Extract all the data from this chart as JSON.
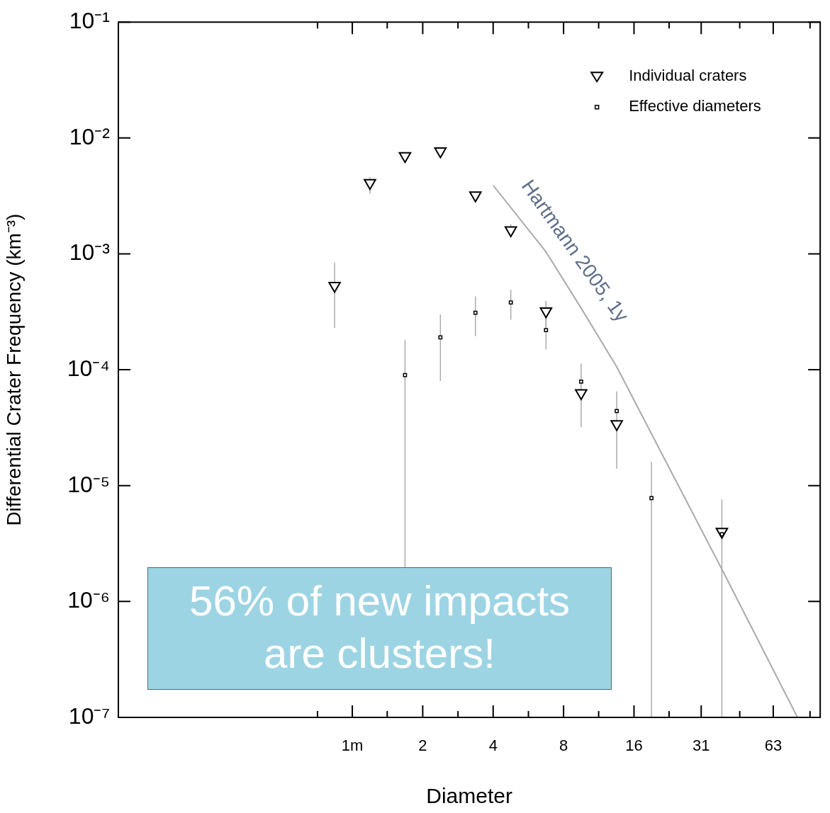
{
  "chart_data": {
    "type": "scatter",
    "xlabel": "Diameter",
    "ylabel": "Differential Crater Frequency (km⁻³)",
    "log": "xy",
    "xlim": [
      0.1,
      100
    ],
    "xticks": [
      {
        "value": 0.71,
        "label": null
      },
      {
        "value": 1,
        "label": "1m"
      },
      {
        "value": 1.41,
        "label": null
      },
      2,
      {
        "value": 2.83,
        "label": null
      },
      4,
      {
        "value": 5.66,
        "label": null
      },
      8,
      {
        "value": 11.3,
        "label": null
      },
      16,
      {
        "value": 22.6,
        "label": null
      },
      31,
      {
        "value": 45.3,
        "label": null
      },
      63,
      {
        "value": 90.5,
        "label": null
      }
    ],
    "ylim": [
      1e-07,
      0.1
    ],
    "yticks": [
      {
        "value": 1e-07,
        "label": "10⁻⁷"
      },
      {
        "value": 1e-06,
        "label": "10⁻⁶"
      },
      {
        "value": 1e-05,
        "label": "10⁻⁵"
      },
      {
        "value": 0.0001,
        "label": "10⁻⁴"
      },
      {
        "value": 0.001,
        "label": "10⁻³"
      },
      {
        "value": 0.01,
        "label": "10⁻²"
      },
      {
        "value": 0.1,
        "label": "10⁻¹"
      }
    ],
    "grid": false,
    "legend": "top right",
    "series": [
      {
        "name": "Individual craters",
        "marker": "triangle",
        "color": "#000000",
        "x": [
          0.84,
          1.19,
          1.68,
          2.38,
          3.36,
          4.76,
          6.73,
          9.51,
          13.5,
          38
        ],
        "values": [
          0.00053,
          0.0041,
          0.007,
          0.0077,
          0.0032,
          0.0016,
          0.00032,
          6.3e-05,
          3.4e-05,
          4e-06
        ],
        "errors": [
          [
            0.00023,
            0.00084
          ],
          [
            0.0033,
            0.0046
          ],
          null,
          null,
          null,
          [
            0.0014,
            0.0018
          ],
          [
            0.00022,
            0.00039
          ],
          [
            3.2e-05,
            0.000113
          ],
          [
            1.4e-05,
            6.5e-05
          ],
          [
            1e-07,
            7.6e-06
          ]
        ]
      },
      {
        "name": "Effective diameters",
        "marker": "square",
        "color": "#000000",
        "x": [
          1.68,
          2.38,
          3.36,
          4.76,
          6.73,
          9.51,
          13.5,
          19,
          38
        ],
        "values": [
          9e-05,
          0.00019,
          0.00031,
          0.00038,
          0.00022,
          7.9e-05,
          4.4e-05,
          7.8e-06,
          3.8e-06
        ],
        "errors": [
          [
            1.1e-06,
            0.00018
          ],
          [
            8e-05,
            0.0003
          ],
          [
            0.000195,
            0.00043
          ],
          [
            0.00027,
            0.00049
          ],
          [
            0.00015,
            0.00039
          ],
          null,
          null,
          [
            1e-07,
            1.6e-05
          ],
          null
        ]
      },
      {
        "type": "line",
        "marker": "none",
        "color": "#aaaaaa",
        "x": [
          4,
          6.73,
          9.51,
          13.5,
          19,
          38,
          80
        ],
        "values": [
          0.0039,
          0.00104,
          0.00034,
          0.000106,
          2.8e-05,
          1.9e-06,
          1e-07
        ]
      }
    ],
    "annotations": [
      "56% of new impacts are clusters!",
      "Hartmann 2005, 1y"
    ]
  }
}
